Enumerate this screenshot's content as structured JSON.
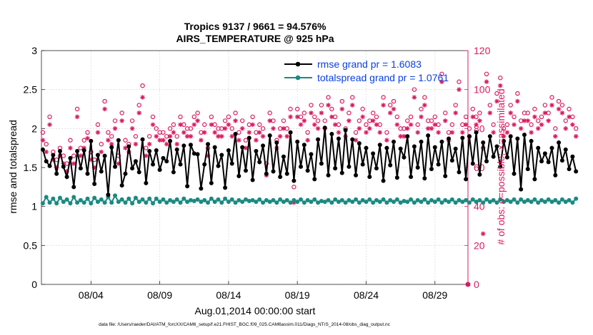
{
  "chart_data": {
    "type": "line",
    "title_line1": "Tropics 9137 / 9661 = 94.576%",
    "title_line2": "AIRS_TEMPERATURE @ 925 hPa",
    "xlabel": "Aug.01,2014 00:00:00 start",
    "ylabel_left": "rmse and totalspread",
    "ylabel_right": "# of obs: o=possible; ×=assimilated",
    "footer": "data file: /Users/raeder/DAI/ATM_forcXX/CAM6_setup/f.e21.FHIST_BGC.f09_025.CAM6assim.011/Diags_NTrS_2014-08/obs_diag_output.nc",
    "xlim": [
      0.4,
      31.4
    ],
    "ylim_left": [
      0,
      3
    ],
    "ylim_right": [
      0,
      120
    ],
    "x_ticks": [
      {
        "label": "08/04",
        "value": 4
      },
      {
        "label": "08/09",
        "value": 9
      },
      {
        "label": "08/14",
        "value": 14
      },
      {
        "label": "08/19",
        "value": 19
      },
      {
        "label": "08/24",
        "value": 24
      },
      {
        "label": "08/29",
        "value": 29
      }
    ],
    "y_ticks_left": [
      "0",
      "0.5",
      "1",
      "1.5",
      "2",
      "2.5",
      "3"
    ],
    "y_ticks_right": [
      "0",
      "20",
      "40",
      "60",
      "80",
      "100",
      "120"
    ],
    "legend": [
      {
        "label": "rmse grand pr = 1.6083",
        "color": "#000000"
      },
      {
        "label": "totalspread grand pr = 1.0761",
        "color": "#1a8a82"
      }
    ],
    "colors": {
      "rmse": "#000000",
      "spread": "#1a8a82",
      "obs": "#d81b60",
      "legend_text": "#0a3fe0",
      "right_axis": "#d81b60"
    },
    "x_start": 0.5,
    "x_step": 0.25,
    "series": [
      {
        "name": "rmse",
        "values": [
          1.73,
          1.58,
          1.52,
          1.66,
          1.42,
          1.71,
          1.51,
          1.38,
          1.62,
          1.25,
          1.71,
          1.49,
          1.72,
          1.42,
          1.84,
          1.29,
          1.66,
          1.45,
          1.65,
          1.15,
          1.76,
          1.51,
          1.85,
          1.27,
          1.42,
          1.77,
          1.49,
          1.58,
          1.44,
          1.86,
          1.3,
          1.71,
          1.54,
          1.72,
          1.47,
          1.62,
          1.58,
          1.84,
          1.44,
          1.73,
          1.54,
          1.78,
          1.26,
          1.79,
          1.68,
          1.67,
          1.23,
          1.54,
          1.8,
          1.3,
          1.76,
          1.52,
          1.66,
          1.24,
          1.72,
          1.55,
          1.93,
          1.39,
          1.76,
          1.46,
          1.88,
          1.34,
          1.71,
          1.57,
          1.78,
          1.42,
          1.91,
          1.45,
          1.82,
          1.38,
          1.64,
          1.42,
          1.95,
          1.33,
          1.83,
          1.51,
          1.79,
          1.46,
          1.67,
          1.35,
          1.86,
          1.55,
          2.01,
          1.4,
          1.93,
          1.49,
          1.87,
          1.43,
          1.98,
          1.51,
          1.86,
          1.4,
          1.81,
          1.54,
          1.75,
          1.38,
          1.68,
          1.49,
          1.79,
          1.33,
          1.75,
          1.53,
          1.83,
          1.37,
          1.74,
          1.63,
          1.9,
          1.38,
          1.77,
          1.5,
          1.83,
          1.36,
          1.91,
          1.48,
          1.76,
          1.54,
          1.83,
          1.39,
          1.87,
          1.59,
          1.74,
          1.44,
          1.88,
          1.35,
          1.9,
          1.55,
          1.95,
          1.41,
          1.82,
          1.58,
          1.9,
          1.64,
          1.77,
          1.51,
          1.84,
          1.63,
          1.9,
          1.42,
          1.87,
          1.22,
          1.92,
          1.48,
          1.84,
          1.35,
          1.75,
          1.58,
          1.68,
          1.57,
          1.75,
          1.4,
          1.82,
          1.59,
          1.73,
          1.48,
          1.64,
          1.45
        ],
        "color": "#000000"
      },
      {
        "name": "totalspread",
        "values": [
          1.04,
          1.12,
          1.05,
          1.1,
          1.04,
          1.11,
          1.06,
          1.09,
          1.04,
          1.12,
          1.05,
          1.08,
          1.05,
          1.1,
          1.04,
          1.11,
          1.06,
          1.09,
          1.05,
          1.12,
          1.05,
          1.14,
          1.06,
          1.09,
          1.05,
          1.1,
          1.04,
          1.11,
          1.06,
          1.09,
          1.05,
          1.1,
          1.04,
          1.1,
          1.06,
          1.09,
          1.05,
          1.08,
          1.06,
          1.09,
          1.05,
          1.1,
          1.06,
          1.08,
          1.07,
          1.09,
          1.06,
          1.08,
          1.05,
          1.1,
          1.06,
          1.09,
          1.05,
          1.1,
          1.06,
          1.09,
          1.05,
          1.08,
          1.06,
          1.09,
          1.07,
          1.08,
          1.06,
          1.09,
          1.05,
          1.08,
          1.06,
          1.08,
          1.05,
          1.09,
          1.06,
          1.08,
          1.05,
          1.08,
          1.06,
          1.09,
          1.05,
          1.08,
          1.06,
          1.09,
          1.05,
          1.07,
          1.06,
          1.08,
          1.05,
          1.09,
          1.06,
          1.08,
          1.05,
          1.08,
          1.06,
          1.09,
          1.05,
          1.08,
          1.06,
          1.09,
          1.05,
          1.08,
          1.06,
          1.09,
          1.05,
          1.08,
          1.06,
          1.09,
          1.05,
          1.07,
          1.06,
          1.09,
          1.05,
          1.08,
          1.06,
          1.09,
          1.05,
          1.08,
          1.06,
          1.09,
          1.05,
          1.08,
          1.06,
          1.09,
          1.05,
          1.08,
          1.06,
          1.08,
          1.05,
          1.09,
          1.06,
          1.08,
          1.05,
          1.09,
          1.06,
          1.08,
          1.05,
          1.09,
          1.06,
          1.08,
          1.06,
          1.09,
          1.05,
          1.09,
          1.06,
          1.08,
          1.06,
          1.09,
          1.05,
          1.08,
          1.06,
          1.09,
          1.06,
          1.08,
          1.05,
          1.09,
          1.06,
          1.08,
          1.05,
          1.1
        ],
        "color": "#1a8a82"
      },
      {
        "name": "obs_possible",
        "values": [
          78,
          72,
          86,
          68,
          64,
          70,
          66,
          62,
          74,
          66,
          90,
          70,
          74,
          78,
          68,
          64,
          82,
          72,
          94,
          78,
          76,
          84,
          66,
          88,
          74,
          72,
          84,
          76,
          92,
          102,
          70,
          76,
          86,
          80,
          78,
          78,
          76,
          80,
          82,
          76,
          86,
          82,
          80,
          80,
          86,
          88,
          78,
          82,
          70,
          86,
          82,
          80,
          80,
          84,
          86,
          80,
          88,
          78,
          84,
          74,
          82,
          86,
          78,
          82,
          80,
          62,
          88,
          84,
          74,
          80,
          84,
          80,
          90,
          50,
          90,
          86,
          88,
          78,
          92,
          86,
          84,
          92,
          84,
          96,
          90,
          86,
          82,
          94,
          80,
          88,
          96,
          78,
          84,
          90,
          82,
          84,
          88,
          86,
          82,
          96,
          78,
          92,
          94,
          86,
          80,
          80,
          84,
          86,
          100,
          82,
          90,
          96,
          84,
          84,
          86,
          82,
          108,
          88,
          78,
          82,
          92,
          104,
          82,
          86,
          80,
          90,
          86,
          88,
          70,
          108,
          92,
          82,
          98,
          106,
          80,
          82,
          92,
          86,
          98,
          84,
          88,
          88,
          82,
          90,
          84,
          86,
          92,
          88,
          96,
          80,
          94,
          92,
          84,
          90,
          86,
          80
        ],
        "color": "#d81b60"
      },
      {
        "name": "obs_assimilated",
        "values": [
          74,
          68,
          82,
          64,
          60,
          66,
          62,
          58,
          70,
          62,
          86,
          66,
          70,
          75,
          64,
          60,
          78,
          68,
          90,
          74,
          72,
          80,
          62,
          84,
          70,
          68,
          80,
          72,
          88,
          96,
          66,
          72,
          82,
          76,
          74,
          74,
          72,
          76,
          78,
          72,
          82,
          78,
          76,
          76,
          82,
          84,
          74,
          78,
          66,
          82,
          78,
          76,
          76,
          80,
          82,
          76,
          84,
          74,
          80,
          70,
          78,
          82,
          74,
          78,
          76,
          56,
          84,
          80,
          70,
          76,
          80,
          76,
          86,
          42,
          86,
          82,
          84,
          74,
          88,
          82,
          80,
          88,
          80,
          92,
          86,
          82,
          78,
          90,
          76,
          84,
          92,
          74,
          80,
          86,
          78,
          80,
          84,
          82,
          78,
          92,
          74,
          88,
          90,
          82,
          76,
          76,
          80,
          82,
          96,
          78,
          86,
          92,
          80,
          80,
          82,
          78,
          104,
          84,
          74,
          78,
          88,
          100,
          78,
          82,
          76,
          86,
          82,
          84,
          26,
          104,
          88,
          78,
          94,
          102,
          76,
          78,
          88,
          82,
          94,
          80,
          84,
          84,
          78,
          86,
          80,
          82,
          88,
          84,
          92,
          76,
          90,
          88,
          80,
          86,
          82,
          76
        ],
        "color": "#d81b60"
      }
    ]
  }
}
